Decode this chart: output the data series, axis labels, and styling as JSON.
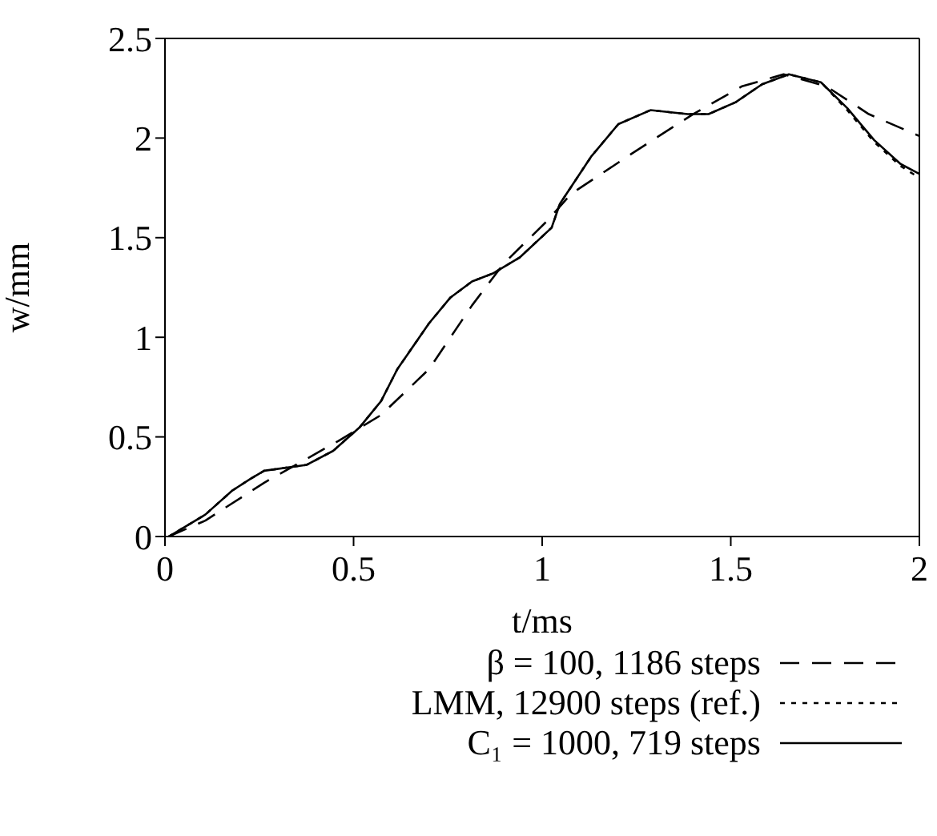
{
  "chart_data": {
    "type": "line",
    "xlabel": "t/ms",
    "ylabel": "w/mm",
    "xlim": [
      0,
      2
    ],
    "ylim": [
      0,
      2.5
    ],
    "xticks": [
      0,
      0.5,
      1,
      1.5,
      2
    ],
    "yticks": [
      0,
      0.5,
      1,
      1.5,
      2,
      2.5
    ],
    "legend": "bottom right",
    "marker": "none",
    "series": [
      {
        "name": "β = 100, 1186 steps",
        "color": "#000000",
        "line_style": "dashed",
        "x": [
          0.01,
          0.107,
          0.263,
          0.46,
          0.573,
          0.7,
          0.814,
          0.898,
          1.011,
          1.077,
          1.244,
          1.4,
          1.53,
          1.64,
          1.753,
          1.866,
          2
        ],
        "values": [
          0,
          0.08,
          0.27,
          0.48,
          0.61,
          0.84,
          1.16,
          1.37,
          1.58,
          1.72,
          1.93,
          2.12,
          2.26,
          2.32,
          2.26,
          2.12,
          2.01
        ]
      },
      {
        "name": "LMM, 12900 steps (ref.)",
        "color": "#000000",
        "line_style": "dotted",
        "x": [
          0.01,
          0.107,
          0.178,
          0.227,
          0.263,
          0.376,
          0.446,
          0.517,
          0.573,
          0.616,
          0.7,
          0.757,
          0.814,
          0.869,
          0.94,
          1.025,
          1.047,
          1.131,
          1.202,
          1.287,
          1.386,
          1.441,
          1.513,
          1.583,
          1.654,
          1.739,
          1.809,
          1.88,
          1.95,
          2
        ],
        "values": [
          0,
          0.11,
          0.23,
          0.29,
          0.33,
          0.36,
          0.43,
          0.55,
          0.68,
          0.84,
          1.07,
          1.2,
          1.28,
          1.32,
          1.4,
          1.55,
          1.67,
          1.91,
          2.07,
          2.14,
          2.12,
          2.12,
          2.18,
          2.27,
          2.32,
          2.28,
          2.14,
          1.98,
          1.86,
          1.8
        ]
      },
      {
        "name": "C₁ = 1000, 719 steps",
        "color": "#000000",
        "line_style": "solid",
        "x": [
          0.01,
          0.107,
          0.178,
          0.227,
          0.263,
          0.376,
          0.446,
          0.517,
          0.573,
          0.616,
          0.7,
          0.757,
          0.814,
          0.869,
          0.94,
          1.025,
          1.047,
          1.131,
          1.202,
          1.287,
          1.386,
          1.441,
          1.513,
          1.583,
          1.654,
          1.739,
          1.809,
          1.88,
          1.95,
          2
        ],
        "values": [
          0,
          0.11,
          0.23,
          0.29,
          0.33,
          0.36,
          0.43,
          0.55,
          0.68,
          0.84,
          1.07,
          1.2,
          1.28,
          1.32,
          1.4,
          1.55,
          1.67,
          1.91,
          2.07,
          2.14,
          2.12,
          2.12,
          2.18,
          2.27,
          2.32,
          2.28,
          2.15,
          1.99,
          1.87,
          1.82
        ]
      }
    ]
  }
}
